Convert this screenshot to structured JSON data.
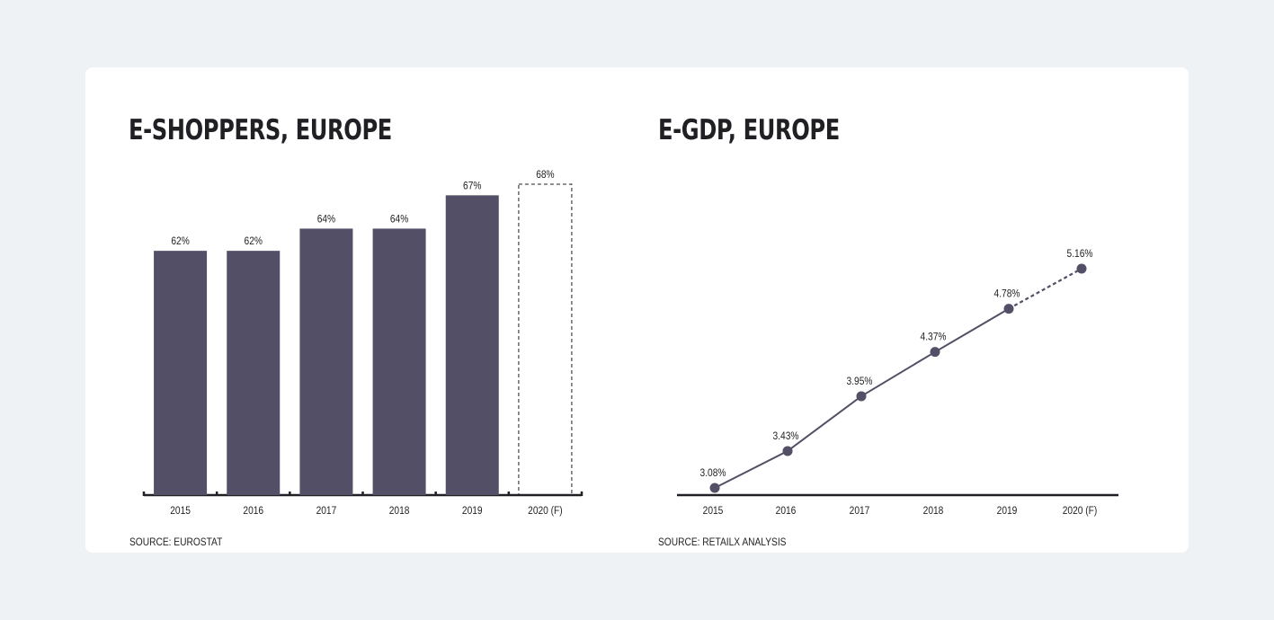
{
  "colors": {
    "bar": "#524f66",
    "line": "#524f66",
    "axis": "#1f1f24",
    "text": "#222222"
  },
  "left_chart": {
    "title": "E-SHOPPERS, EUROPE",
    "source": "SOURCE: EUROSTAT"
  },
  "right_chart": {
    "title": "E-GDP, EUROPE",
    "source": "SOURCE: RETAILX ANALYSIS"
  },
  "chart_data": [
    {
      "type": "bar",
      "title": "E-SHOPPERS, EUROPE",
      "categories": [
        "2015",
        "2016",
        "2017",
        "2018",
        "2019",
        "2020 (F)"
      ],
      "values": [
        62,
        62,
        64,
        64,
        67,
        68
      ],
      "data_labels": [
        "62%",
        "62%",
        "64%",
        "64%",
        "67%",
        "68%"
      ],
      "forecast": [
        false,
        false,
        false,
        false,
        false,
        true
      ],
      "ylim": [
        40,
        70
      ],
      "grid": false
    },
    {
      "type": "line",
      "title": "E-GDP, EUROPE",
      "categories": [
        "2015",
        "2016",
        "2017",
        "2018",
        "2019",
        "2020 (F)"
      ],
      "values": [
        3.08,
        3.43,
        3.95,
        4.37,
        4.78,
        5.16
      ],
      "data_labels": [
        "3.08%",
        "3.43%",
        "3.95%",
        "4.37%",
        "4.78%",
        "5.16%"
      ],
      "forecast": [
        false,
        false,
        false,
        false,
        false,
        true
      ],
      "ylim": [
        2.9,
        5.6
      ],
      "grid": false
    }
  ]
}
